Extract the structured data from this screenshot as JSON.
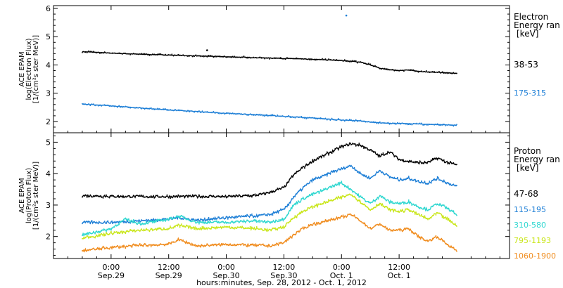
{
  "chart_data": [
    {
      "type": "line",
      "ylabel_lines": [
        "ACE EPAM",
        "log(Electron Flux)",
        "[1/(cm²s ster MeV)]"
      ],
      "ylim": [
        1.6,
        6.1
      ],
      "yticks": [
        2,
        3,
        4,
        5,
        6
      ],
      "legend_title": [
        "Electron",
        "Energy ran"
      ],
      "legend_unit": "[keV]",
      "series": [
        {
          "name": "38-53",
          "color": "#000000",
          "x": [
            0,
            6,
            12,
            18,
            24,
            30,
            36,
            42,
            48,
            54,
            58,
            60,
            62,
            64,
            66,
            68,
            70,
            72,
            74,
            76,
            78
          ],
          "y": [
            4.47,
            4.42,
            4.38,
            4.35,
            4.32,
            4.29,
            4.26,
            4.23,
            4.2,
            4.16,
            4.1,
            4.0,
            3.88,
            3.84,
            3.8,
            3.82,
            3.78,
            3.75,
            3.74,
            3.72,
            3.7
          ]
        },
        {
          "name": "175-315",
          "color": "#1e7fd6",
          "x": [
            0,
            6,
            12,
            18,
            24,
            30,
            36,
            42,
            48,
            54,
            58,
            60,
            62,
            64,
            66,
            68,
            70,
            72,
            74,
            76,
            78
          ],
          "y": [
            2.62,
            2.55,
            2.48,
            2.41,
            2.35,
            2.29,
            2.24,
            2.18,
            2.12,
            2.05,
            2.02,
            1.97,
            1.95,
            1.94,
            1.93,
            1.92,
            1.91,
            1.9,
            1.89,
            1.88,
            1.86
          ]
        }
      ],
      "outliers": [
        {
          "x": 55,
          "y": 5.75
        },
        {
          "x": 26,
          "y": 4.52
        }
      ]
    },
    {
      "type": "line",
      "ylabel_lines": [
        "ACE EPAM",
        "log(Proton Flux)",
        "[1/(cm²s ster MeV)]"
      ],
      "ylim": [
        1.3,
        5.3
      ],
      "yticks": [
        2,
        3,
        4,
        5
      ],
      "legend_title": [
        "Proton",
        "Energy ran"
      ],
      "legend_unit": "[keV]",
      "series": [
        {
          "name": "47-68",
          "color": "#000000",
          "x": [
            0,
            6,
            12,
            18,
            24,
            30,
            36,
            39,
            42,
            44,
            46,
            48,
            50,
            52,
            54,
            56,
            58,
            60,
            62,
            64,
            66,
            68,
            70,
            72,
            74,
            76,
            78
          ],
          "y": [
            3.3,
            3.28,
            3.27,
            3.27,
            3.28,
            3.27,
            3.3,
            3.4,
            3.55,
            3.95,
            4.2,
            4.4,
            4.55,
            4.7,
            4.85,
            4.95,
            4.9,
            4.75,
            4.55,
            4.7,
            4.45,
            4.4,
            4.35,
            4.35,
            4.5,
            4.35,
            4.28
          ]
        },
        {
          "name": "115-195",
          "color": "#1e7fd6",
          "x": [
            0,
            6,
            12,
            18,
            20,
            24,
            30,
            36,
            39,
            42,
            44,
            46,
            48,
            50,
            52,
            54,
            56,
            58,
            60,
            62,
            64,
            66,
            68,
            70,
            72,
            74,
            76,
            78
          ],
          "y": [
            2.45,
            2.45,
            2.5,
            2.55,
            2.6,
            2.52,
            2.6,
            2.65,
            2.7,
            2.85,
            3.25,
            3.55,
            3.8,
            3.9,
            4.05,
            4.15,
            4.25,
            4.0,
            3.85,
            4.1,
            3.9,
            3.8,
            3.85,
            3.75,
            3.7,
            3.85,
            3.7,
            3.6
          ]
        },
        {
          "name": "310-580",
          "color": "#2fd7d0",
          "x": [
            0,
            6,
            9,
            12,
            18,
            20,
            24,
            30,
            36,
            39,
            42,
            44,
            46,
            48,
            50,
            52,
            54,
            56,
            58,
            60,
            62,
            64,
            66,
            68,
            70,
            72,
            74,
            76,
            78
          ],
          "y": [
            2.05,
            2.25,
            2.55,
            2.4,
            2.55,
            2.65,
            2.45,
            2.45,
            2.5,
            2.45,
            2.55,
            3.0,
            3.2,
            3.35,
            3.45,
            3.6,
            3.7,
            3.5,
            3.25,
            3.05,
            3.3,
            3.1,
            3.05,
            3.1,
            2.95,
            2.85,
            3.05,
            2.9,
            2.7
          ]
        },
        {
          "name": "795-1193",
          "color": "#c9e61a",
          "x": [
            0,
            6,
            12,
            18,
            20,
            24,
            30,
            36,
            39,
            42,
            44,
            46,
            48,
            50,
            52,
            54,
            56,
            58,
            60,
            62,
            64,
            66,
            68,
            70,
            72,
            74,
            76,
            78
          ],
          "y": [
            1.95,
            2.1,
            2.2,
            2.25,
            2.35,
            2.25,
            2.3,
            2.25,
            2.2,
            2.3,
            2.6,
            2.8,
            2.95,
            3.05,
            3.15,
            3.25,
            3.35,
            3.1,
            2.85,
            3.05,
            2.85,
            2.8,
            2.85,
            2.7,
            2.55,
            2.75,
            2.55,
            2.35
          ]
        },
        {
          "name": "1060-1900",
          "color": "#f08c1e",
          "x": [
            0,
            6,
            12,
            18,
            20,
            24,
            30,
            36,
            39,
            42,
            44,
            46,
            48,
            50,
            52,
            54,
            56,
            58,
            60,
            62,
            64,
            66,
            68,
            70,
            72,
            74,
            76,
            78
          ],
          "y": [
            1.55,
            1.65,
            1.72,
            1.75,
            1.9,
            1.7,
            1.75,
            1.72,
            1.7,
            1.8,
            2.05,
            2.25,
            2.4,
            2.45,
            2.55,
            2.6,
            2.7,
            2.5,
            2.25,
            2.4,
            2.2,
            2.2,
            2.25,
            2.0,
            1.85,
            2.0,
            1.75,
            1.55
          ]
        }
      ]
    }
  ],
  "xaxis": {
    "xlim": [
      -6,
      89
    ],
    "ticks": [
      {
        "x": 6,
        "time": "0:00",
        "date": "Sep.29"
      },
      {
        "x": 18,
        "time": "12:00",
        "date": "Sep.29"
      },
      {
        "x": 30,
        "time": "0:00",
        "date": "Sep.30"
      },
      {
        "x": 42,
        "time": "12:00",
        "date": "Sep.30"
      },
      {
        "x": 54,
        "time": "0:00",
        "date": "Oct. 1"
      },
      {
        "x": 66,
        "time": "12:00",
        "date": "Oct. 1"
      }
    ],
    "label": "hours:minutes, Sep. 28, 2012 - Oct.  1, 2012"
  }
}
